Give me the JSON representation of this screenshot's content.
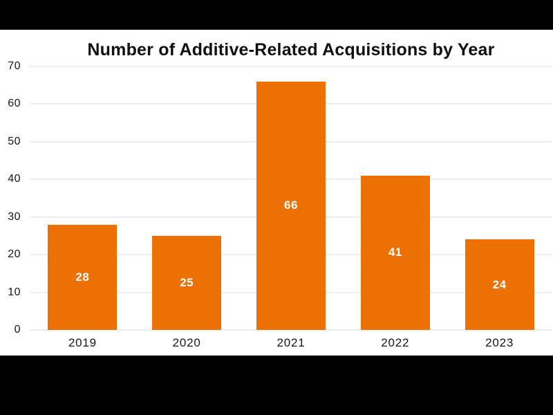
{
  "chart_data": {
    "type": "bar",
    "title": "Number of Additive-Related Acquisitions by Year",
    "categories": [
      "2019",
      "2020",
      "2021",
      "2022",
      "2023"
    ],
    "values": [
      28,
      25,
      66,
      41,
      24
    ],
    "xlabel": "",
    "ylabel": "",
    "ylim": [
      0,
      70
    ],
    "yticks": [
      0,
      10,
      20,
      30,
      40,
      50,
      60,
      70
    ],
    "grid": true,
    "legend_position": "none",
    "value_labels": [
      "28",
      "25",
      "66",
      "41",
      "24"
    ],
    "colors": {
      "bar": "#ED7004",
      "value_label": "#FFFFFF",
      "gridline": "#EDEDED",
      "text": "#161616",
      "title_text": "#111111",
      "plot_background": "#FFFFFF",
      "letterbox_background": "#000000"
    }
  }
}
